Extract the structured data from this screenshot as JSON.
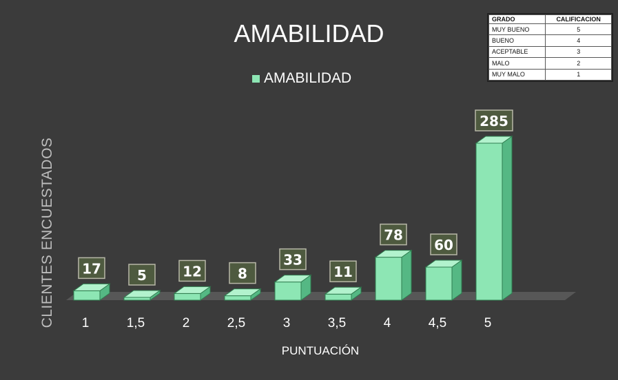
{
  "chart_data": {
    "type": "bar",
    "title": "AMABILIDAD",
    "xlabel": "PUNTUACIÓN",
    "ylabel": "CLIENTES ENCUESTADOS",
    "categories": [
      "1",
      "1,5",
      "2",
      "2,5",
      "3",
      "3,5",
      "4",
      "4,5",
      "5"
    ],
    "series": [
      {
        "name": "AMABILIDAD",
        "values": [
          17,
          5,
          12,
          8,
          33,
          11,
          78,
          60,
          285
        ]
      }
    ],
    "ylim": [
      0,
      300
    ],
    "grid": false,
    "legend": "top-center",
    "colors": {
      "bar": "#8de6b4",
      "bar_side": "#55b884",
      "bar_top": "#b2f2cd",
      "bar_edge": "#2f7d4f",
      "label_box": "#4e5a3f",
      "floor": "#575757",
      "background": "#3b3b3b"
    }
  },
  "reference_table": {
    "headers": [
      "GRADO",
      "CALIFICACION"
    ],
    "rows": [
      [
        "MUY BUENO",
        "5"
      ],
      [
        "BUENO",
        "4"
      ],
      [
        "ACEPTABLE",
        "3"
      ],
      [
        "MALO",
        "2"
      ],
      [
        "MUY MALO",
        "1"
      ]
    ]
  }
}
